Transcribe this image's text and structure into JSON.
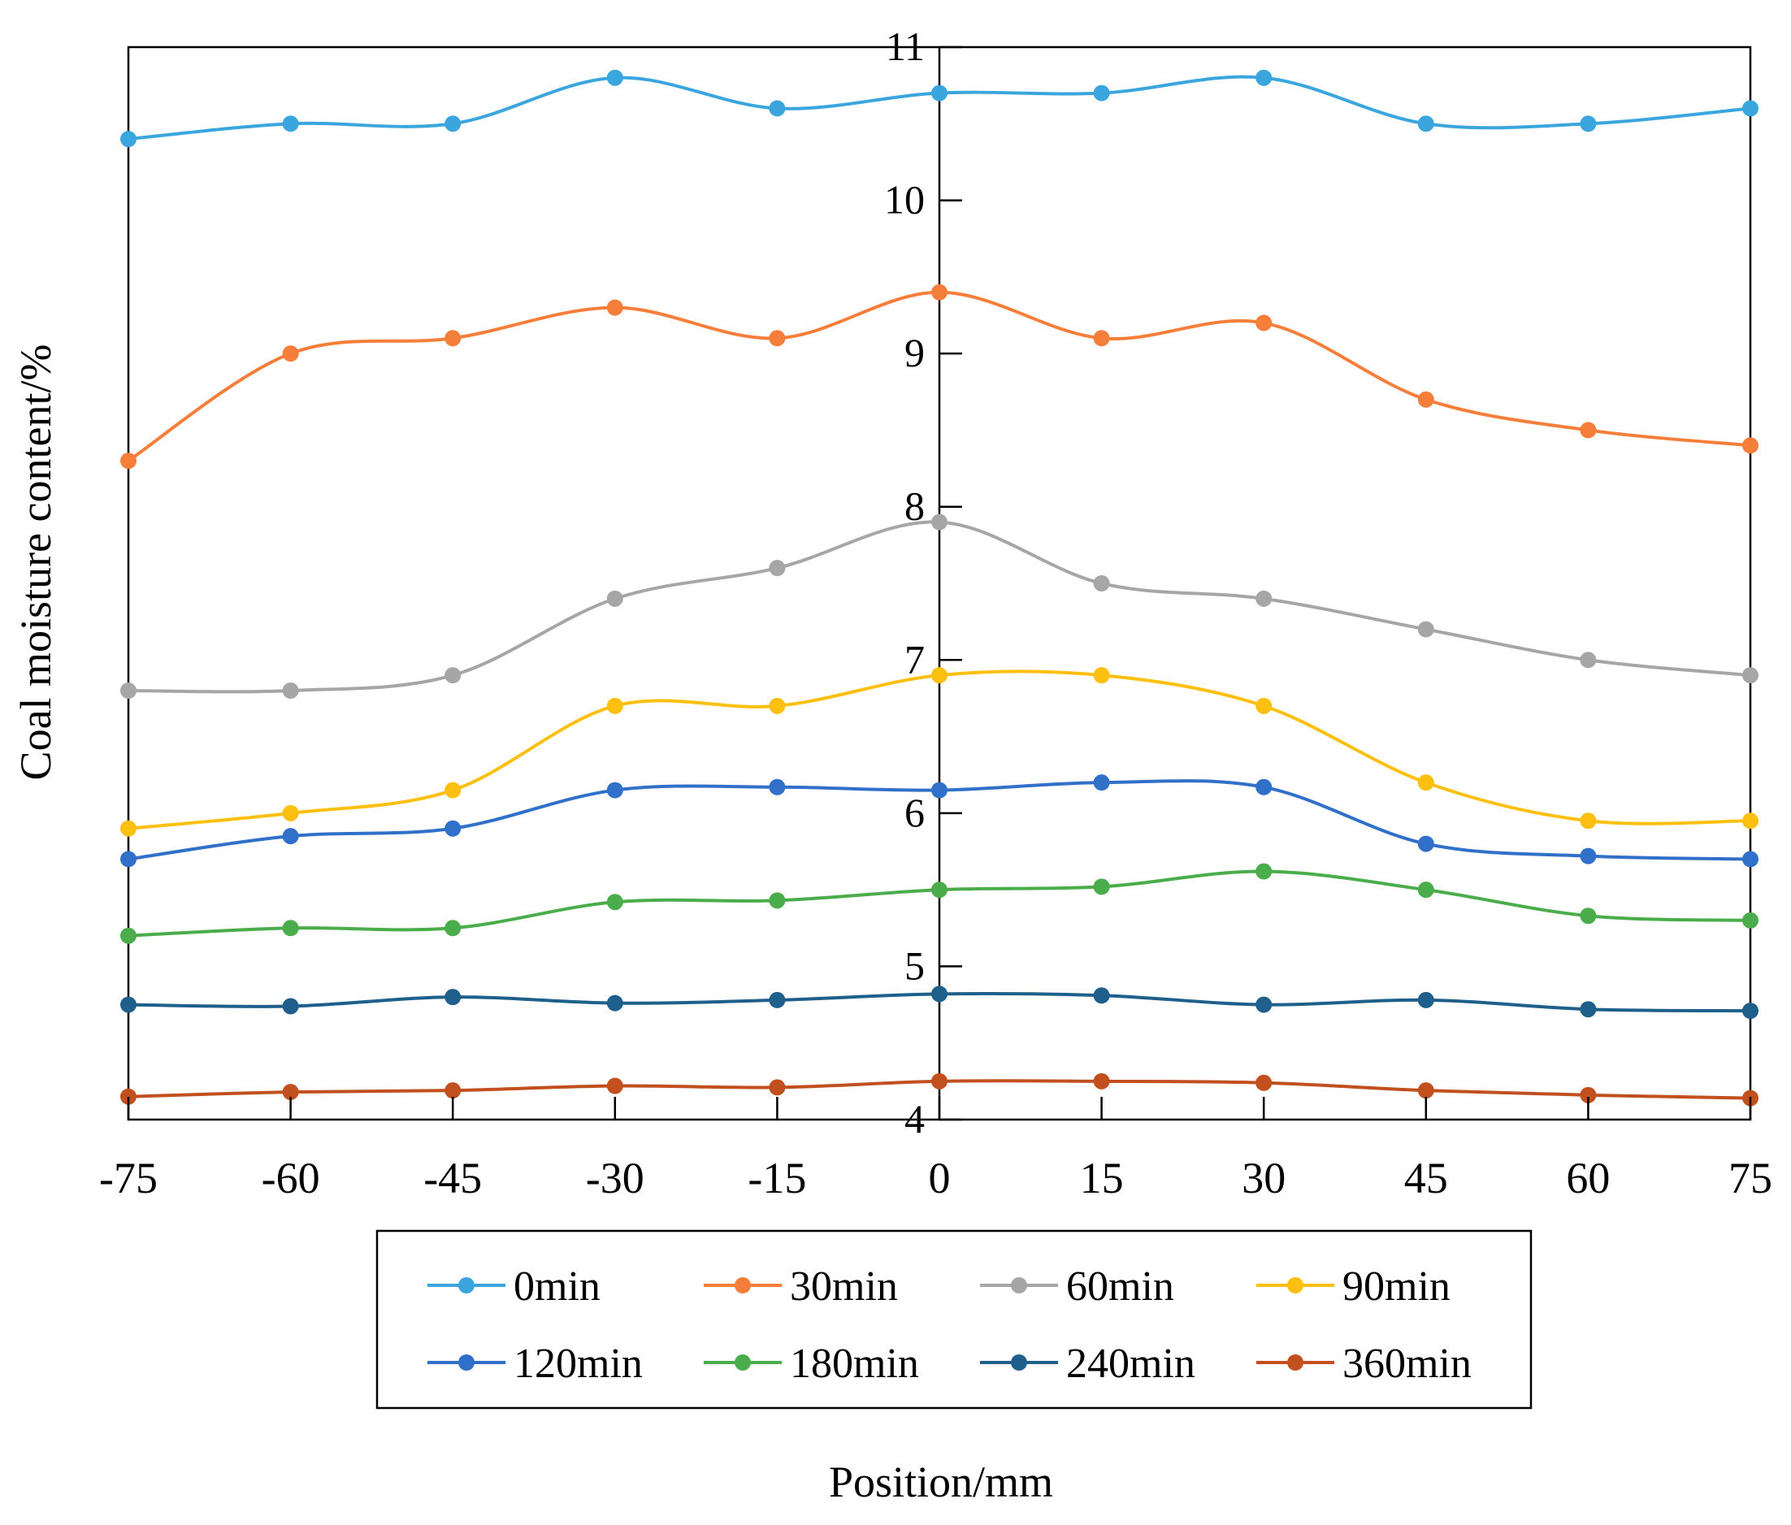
{
  "chart_data": {
    "type": "line",
    "xlabel": "Position/mm",
    "ylabel": "Coal moisture content/%",
    "x": [
      -75,
      -60,
      -45,
      -30,
      -15,
      0,
      15,
      30,
      45,
      60,
      75
    ],
    "x_ticks": [
      "-75",
      "-60",
      "-45",
      "-30",
      "-15",
      "0",
      "15",
      "30",
      "45",
      "60",
      "75"
    ],
    "xlim": [
      -75,
      75
    ],
    "y_ticks": [
      "4",
      "5",
      "6",
      "7",
      "8",
      "9",
      "10",
      "11"
    ],
    "ylim": [
      4,
      11
    ],
    "grid": false,
    "legend_position": "below-plot",
    "series": [
      {
        "name": "0min",
        "color": "#3aa6dd",
        "values": [
          10.4,
          10.5,
          10.5,
          10.8,
          10.6,
          10.7,
          10.7,
          10.8,
          10.5,
          10.5,
          10.6
        ]
      },
      {
        "name": "30min",
        "color": "#f57f3a",
        "values": [
          8.3,
          9.0,
          9.1,
          9.3,
          9.1,
          9.4,
          9.1,
          9.2,
          8.7,
          8.5,
          8.4
        ]
      },
      {
        "name": "60min",
        "color": "#a6a6a6",
        "values": [
          6.8,
          6.8,
          6.9,
          7.4,
          7.6,
          7.9,
          7.5,
          7.4,
          7.2,
          7.0,
          6.9
        ]
      },
      {
        "name": "90min",
        "color": "#fdc010",
        "values": [
          5.9,
          6.0,
          6.15,
          6.7,
          6.7,
          6.9,
          6.9,
          6.7,
          6.2,
          5.95,
          5.95
        ]
      },
      {
        "name": "120min",
        "color": "#3070c8",
        "values": [
          5.7,
          5.85,
          5.9,
          6.15,
          6.17,
          6.15,
          6.2,
          6.17,
          5.8,
          5.72,
          5.7
        ]
      },
      {
        "name": "180min",
        "color": "#4aac4a",
        "values": [
          5.2,
          5.25,
          5.25,
          5.42,
          5.43,
          5.5,
          5.52,
          5.62,
          5.5,
          5.33,
          5.3
        ]
      },
      {
        "name": "240min",
        "color": "#1f5f8b",
        "values": [
          4.75,
          4.74,
          4.8,
          4.76,
          4.78,
          4.82,
          4.81,
          4.75,
          4.78,
          4.72,
          4.71
        ]
      },
      {
        "name": "360min",
        "color": "#c2501e",
        "values": [
          4.15,
          4.18,
          4.19,
          4.22,
          4.21,
          4.25,
          4.25,
          4.24,
          4.19,
          4.16,
          4.14
        ]
      }
    ]
  }
}
